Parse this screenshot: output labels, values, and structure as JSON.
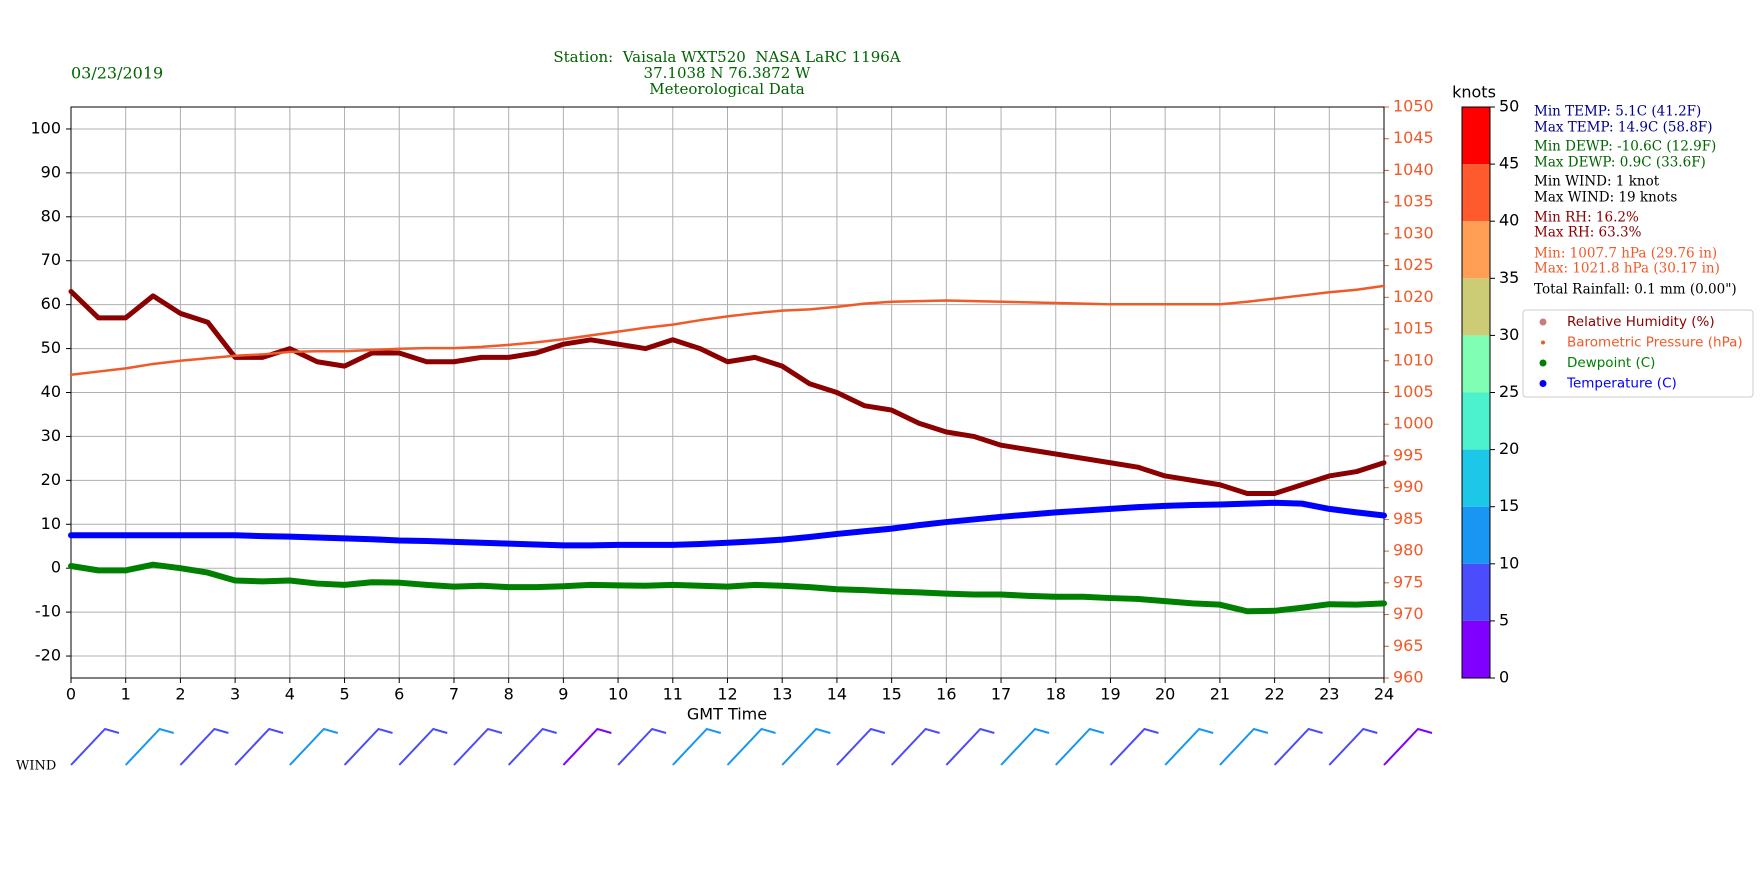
{
  "chart_data": {
    "type": "line",
    "title_lines": [
      "Station:  Vaisala WXT520  NASA LaRC 1196A",
      "37.1038 N 76.3872 W",
      "Meteorological Data"
    ],
    "title_color": "#006400",
    "date": "03/23/2019",
    "x_label": "GMT Time",
    "x": [
      0,
      0.5,
      1,
      1.5,
      2,
      2.5,
      3,
      3.5,
      4,
      4.5,
      5,
      5.5,
      6,
      6.5,
      7,
      7.5,
      8,
      8.5,
      9,
      9.5,
      10,
      10.5,
      11,
      11.5,
      12,
      12.5,
      13,
      13.5,
      14,
      14.5,
      15,
      15.5,
      16,
      16.5,
      17,
      17.5,
      18,
      18.5,
      19,
      19.5,
      20,
      20.5,
      21,
      21.5,
      22,
      22.5,
      23,
      23.5,
      24
    ],
    "xlim": [
      0,
      24
    ],
    "xticks": [
      0,
      1,
      2,
      3,
      4,
      5,
      6,
      7,
      8,
      9,
      10,
      11,
      12,
      13,
      14,
      15,
      16,
      17,
      18,
      19,
      20,
      21,
      22,
      23,
      24
    ],
    "ylim": [
      -25,
      105
    ],
    "yticks": [
      -20,
      -10,
      0,
      10,
      20,
      30,
      40,
      50,
      60,
      70,
      80,
      90,
      100
    ],
    "y2lim": [
      960,
      1050
    ],
    "y2ticks": [
      960,
      965,
      970,
      975,
      980,
      985,
      990,
      995,
      1000,
      1005,
      1010,
      1015,
      1020,
      1025,
      1030,
      1035,
      1040,
      1045,
      1050
    ],
    "y2_color": "#f05a28",
    "grid": true,
    "legend": "right",
    "series": [
      {
        "name": "Relative Humidity (%)",
        "color": "#8b0000",
        "width": 5,
        "values": [
          63,
          57,
          57,
          62,
          58,
          56,
          48,
          48,
          50,
          47,
          46,
          49,
          49,
          47,
          47,
          48,
          48,
          49,
          51,
          52,
          51,
          50,
          52,
          50,
          47,
          48,
          46,
          42,
          40,
          37,
          36,
          33,
          31,
          30,
          28,
          27,
          26,
          25,
          24,
          23,
          21,
          20,
          19,
          17,
          17,
          19,
          21,
          22,
          24
        ]
      },
      {
        "name": "Barometric Pressure (hPa)",
        "color": "#f05a28",
        "width": 2.5,
        "axis": "y2",
        "values": [
          1007.8,
          1008.3,
          1008.8,
          1009.5,
          1010,
          1010.4,
          1010.8,
          1011,
          1011.4,
          1011.5,
          1011.5,
          1011.7,
          1011.9,
          1012,
          1012,
          1012.2,
          1012.5,
          1012.9,
          1013.4,
          1014,
          1014.6,
          1015.2,
          1015.7,
          1016.4,
          1017,
          1017.5,
          1017.9,
          1018.1,
          1018.5,
          1019,
          1019.3,
          1019.4,
          1019.5,
          1019.4,
          1019.3,
          1019.2,
          1019.1,
          1019,
          1018.9,
          1018.9,
          1018.9,
          1018.9,
          1018.9,
          1019.3,
          1019.8,
          1020.3,
          1020.8,
          1021.2,
          1021.8
        ]
      },
      {
        "name": "Dewpoint (C)",
        "color": "#008000",
        "width": 6,
        "values": [
          0.5,
          -0.5,
          -0.5,
          0.8,
          0,
          -1,
          -2.8,
          -3,
          -2.8,
          -3.5,
          -3.8,
          -3.2,
          -3.3,
          -3.8,
          -4.2,
          -4,
          -4.3,
          -4.3,
          -4.1,
          -3.8,
          -3.9,
          -4,
          -3.8,
          -4,
          -4.2,
          -3.8,
          -4,
          -4.3,
          -4.8,
          -5,
          -5.3,
          -5.5,
          -5.8,
          -6,
          -6,
          -6.3,
          -6.5,
          -6.5,
          -6.8,
          -7,
          -7.5,
          -8,
          -8.3,
          -9.8,
          -9.7,
          -9,
          -8.2,
          -8.3,
          -8
        ]
      },
      {
        "name": "Temperature (C)",
        "color": "#0000ff",
        "width": 6,
        "values": [
          7.5,
          7.5,
          7.5,
          7.5,
          7.5,
          7.5,
          7.5,
          7.3,
          7.2,
          7,
          6.8,
          6.6,
          6.3,
          6.2,
          6,
          5.8,
          5.6,
          5.4,
          5.2,
          5.2,
          5.3,
          5.3,
          5.3,
          5.5,
          5.8,
          6.1,
          6.5,
          7.1,
          7.8,
          8.4,
          9,
          9.8,
          10.5,
          11.1,
          11.7,
          12.2,
          12.7,
          13.1,
          13.5,
          13.9,
          14.2,
          14.4,
          14.5,
          14.7,
          14.9,
          14.7,
          13.5,
          12.7,
          12
        ]
      }
    ],
    "stats": [
      {
        "text": "Min TEMP: 5.1C (41.2F)",
        "color": "#00008b"
      },
      {
        "text": "Max TEMP: 14.9C (58.8F)",
        "color": "#00008b"
      },
      {
        "text": "Min DEWP: -10.6C (12.9F)",
        "color": "#006400"
      },
      {
        "text": "Max DEWP: 0.9C (33.6F)",
        "color": "#006400"
      },
      {
        "text": "Min WIND: 1 knot",
        "color": "#000000"
      },
      {
        "text": "Max WIND: 19 knots",
        "color": "#000000"
      },
      {
        "text": "Min RH: 16.2%",
        "color": "#8b0000"
      },
      {
        "text": "Max RH: 63.3%",
        "color": "#8b0000"
      },
      {
        "text": "Min: 1007.7 hPa (29.76 in)",
        "color": "#f05a28"
      },
      {
        "text": "Max: 1021.8 hPa (30.17 in)",
        "color": "#f05a28"
      },
      {
        "text": "Total Rainfall: 0.1 mm (0.00\")",
        "color": "#000000"
      }
    ],
    "colorbar": {
      "label": "knots",
      "ticks": [
        0,
        5,
        10,
        15,
        20,
        25,
        30,
        35,
        40,
        45,
        50
      ],
      "colors": [
        "#7f00ff",
        "#4b4cfc",
        "#1996f3",
        "#1cc7e7",
        "#4cf2ce",
        "#7ffeb4",
        "#cccc76",
        "#ff9f55",
        "#ff5a2e",
        "#ff0000"
      ]
    },
    "wind": {
      "label": "WIND",
      "x": [
        0,
        1,
        2,
        3,
        4,
        5,
        6,
        7,
        8,
        9,
        10,
        11,
        12,
        13,
        14,
        15,
        16,
        17,
        18,
        19,
        20,
        21,
        22,
        23,
        24
      ],
      "values": [
        8,
        11,
        9,
        7,
        10,
        8,
        9,
        6,
        5,
        4,
        9,
        11,
        12,
        10,
        9,
        8,
        6,
        10,
        12,
        9,
        11,
        13,
        7,
        5,
        4
      ]
    }
  }
}
